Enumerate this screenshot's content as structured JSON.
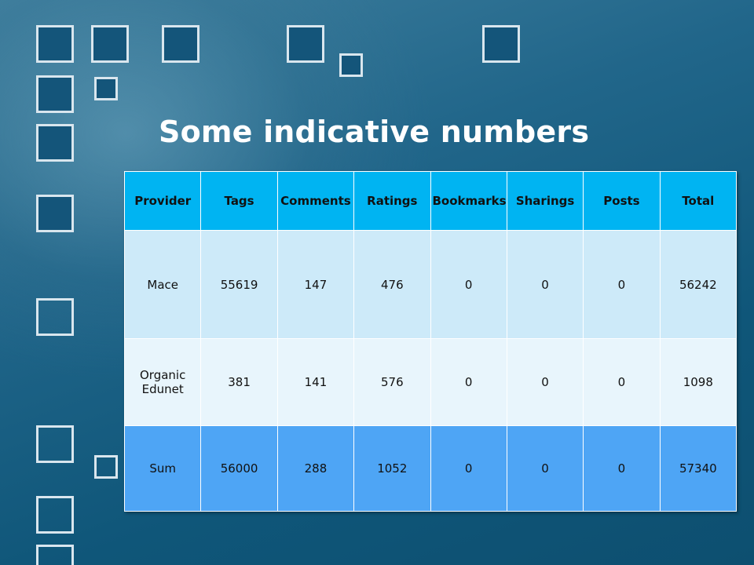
{
  "slide": {
    "title": "Some indicative numbers"
  },
  "table": {
    "headers": [
      "Provider",
      "Tags",
      "Comments",
      "Ratings",
      "Bookmarks",
      "Sharings",
      "Posts",
      "Total"
    ],
    "rows": [
      [
        "Mace",
        "55619",
        "147",
        "476",
        "0",
        "0",
        "0",
        "56242"
      ],
      [
        "Organic Edunet",
        "381",
        "141",
        "576",
        "0",
        "0",
        "0",
        "1098"
      ],
      [
        "Sum",
        "56000",
        "288",
        "1052",
        "0",
        "0",
        "0",
        "57340"
      ]
    ]
  },
  "colors": {
    "header_bg": "#00b4f2",
    "row1_bg": "#cdeaf9",
    "row2_bg": "#e8f5fc",
    "sum_row_bg": "#4ea5f5",
    "background": "#0f5679"
  }
}
